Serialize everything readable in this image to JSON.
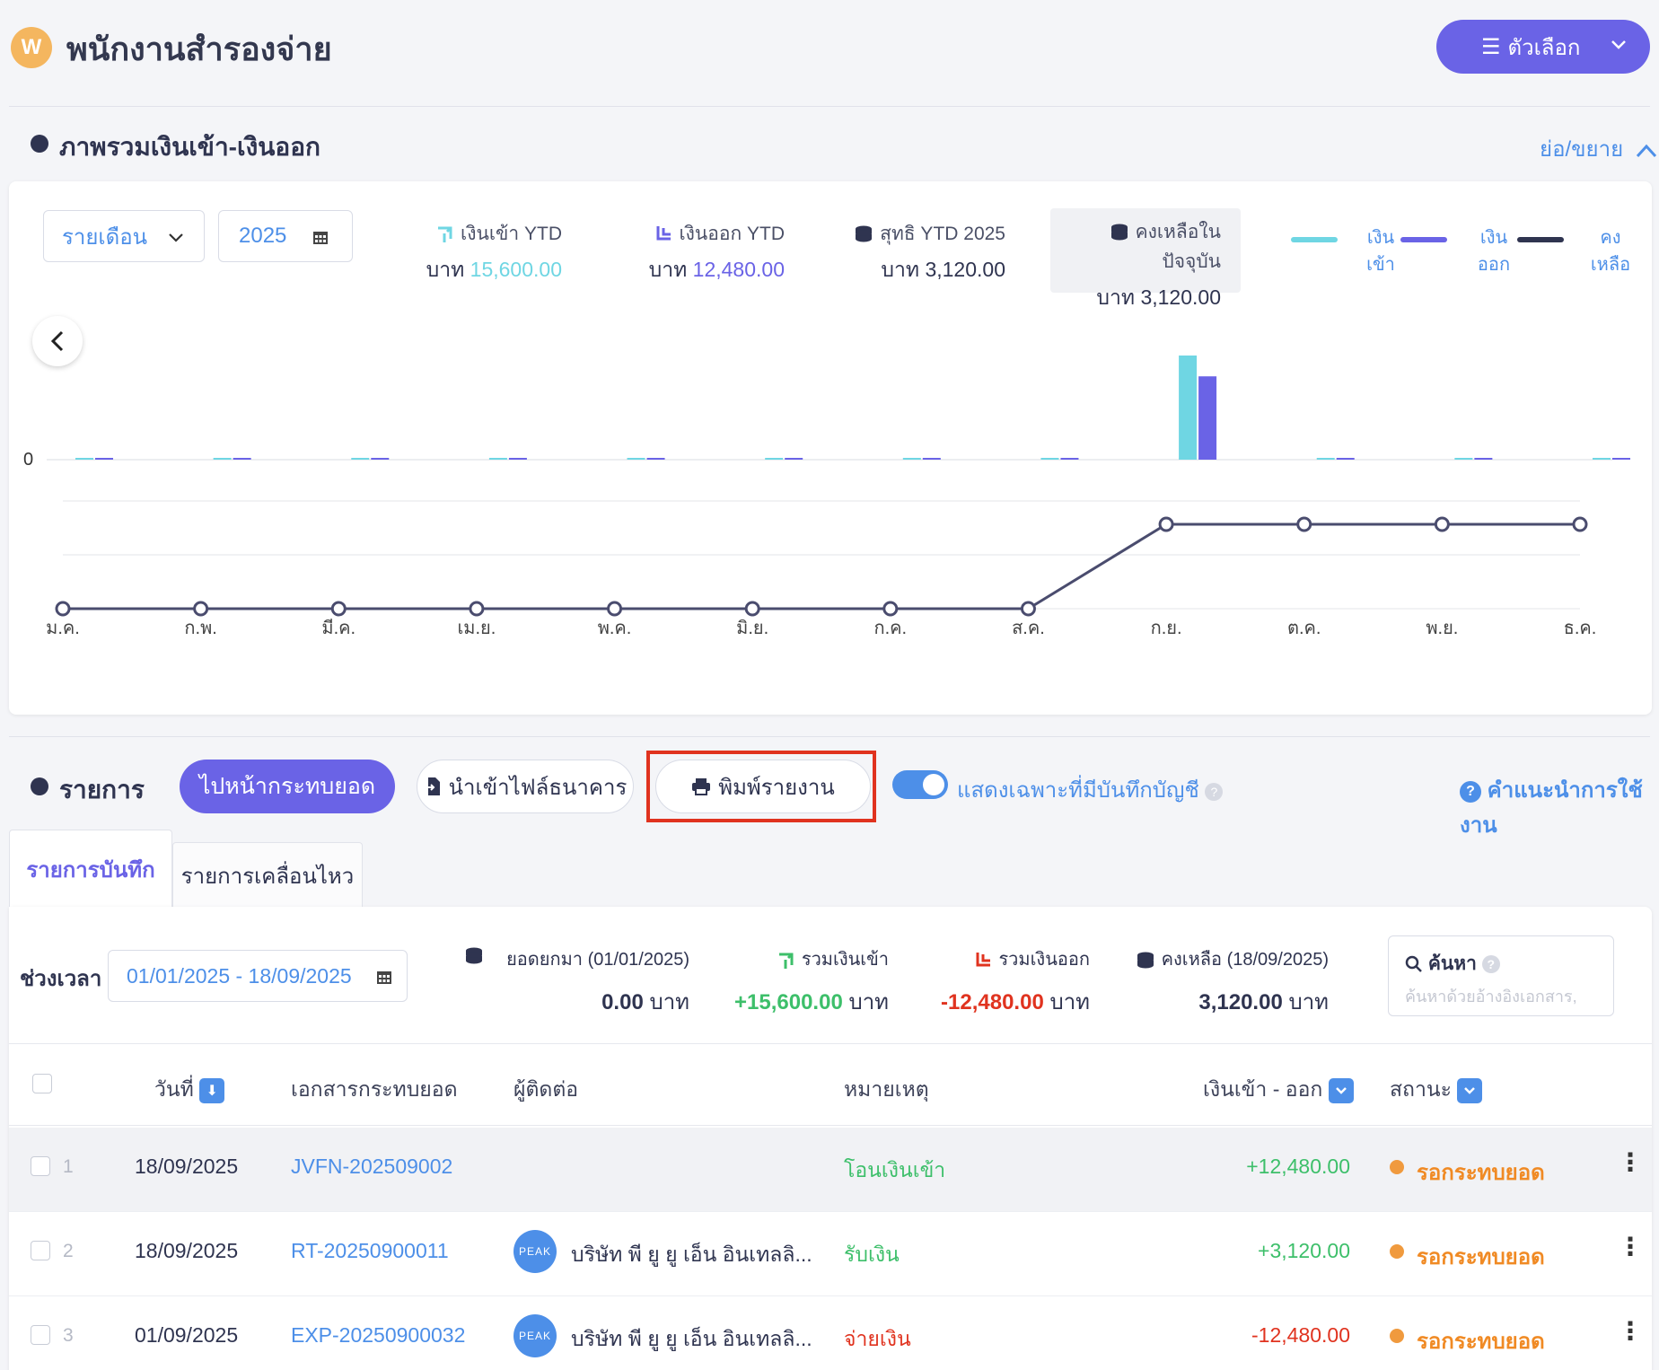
{
  "header": {
    "logo_letter": "W",
    "title": "พนักงานสำรองจ่าย",
    "options_label": "ตัวเลือก"
  },
  "overview": {
    "title": "ภาพรวมเงินเข้า-เงินออก",
    "collapse_label": "ย่อ/ขยาย",
    "period_select": "รายเดือน",
    "year_value": "2025",
    "stats": {
      "in_label": "เงินเข้า YTD",
      "in_currency": "บาท",
      "in_value": "15,600.00",
      "out_label": "เงินออก YTD",
      "out_currency": "บาท",
      "out_value": "12,480.00",
      "net_label": "สุทธิ YTD 2025",
      "net_value": "บาท 3,120.00",
      "balance_label": "คงเหลือในปัจจุบัน",
      "balance_value": "บาท 3,120.00"
    },
    "legend": {
      "in": [
        "เงิน",
        "เข้า"
      ],
      "out": [
        "เงิน",
        "ออก"
      ],
      "bal": [
        "คง",
        "เหลือ"
      ]
    }
  },
  "chart_data": {
    "type": "bar",
    "title": "ภาพรวมเงินเข้า-เงินออก",
    "categories": [
      "ม.ค.",
      "ก.พ.",
      "มี.ค.",
      "เม.ย.",
      "พ.ค.",
      "มิ.ย.",
      "ก.ค.",
      "ส.ค.",
      "ก.ย.",
      "ต.ค.",
      "พ.ย.",
      "ธ.ค."
    ],
    "zero_label": "0",
    "series": [
      {
        "name": "เงินเข้า",
        "type": "bar",
        "color": "#6fd6e3",
        "values": [
          0,
          0,
          0,
          0,
          0,
          0,
          0,
          0,
          15600,
          0,
          0,
          0
        ]
      },
      {
        "name": "เงินออก",
        "type": "bar",
        "color": "#6a63e6",
        "values": [
          0,
          0,
          0,
          0,
          0,
          0,
          0,
          0,
          12480,
          0,
          0,
          0
        ]
      },
      {
        "name": "คงเหลือ",
        "type": "line",
        "color": "#4a4c6e",
        "values": [
          0,
          0,
          0,
          0,
          0,
          0,
          0,
          0,
          3120,
          3120,
          3120,
          3120
        ]
      }
    ]
  },
  "toolbar": {
    "section_title": "รายการ",
    "goto_ledger": "ไปหน้ากระทบยอด",
    "import_bank": "นำเข้าไฟล์ธนาคาร",
    "print_report": "พิมพ์รายงาน",
    "toggle_label": "แสดงเฉพาะที่มีบันทึกบัญชี",
    "help_label": "คำแนะนำการใช้งาน"
  },
  "tabs": [
    "รายการบันทึก",
    "รายการเคลื่อนไหว"
  ],
  "summary": {
    "period_label": "ช่วงเวลา",
    "period_value": "01/01/2025 - 18/09/2025",
    "carry_label": "ยอดยกมา (01/01/2025)",
    "carry_value": "0.00",
    "in_label": "รวมเงินเข้า",
    "in_value": "+15,600.00",
    "out_label": "รวมเงินออก",
    "out_value": "-12,480.00",
    "bal_label": "คงเหลือ (18/09/2025)",
    "bal_value": "3,120.00",
    "currency": "บาท",
    "search_label": "ค้นหา",
    "search_placeholder": "ค้นหาด้วยอ้างอิงเอกสาร,"
  },
  "table": {
    "columns": {
      "date": "วันที่",
      "doc": "เอกสารกระทบยอด",
      "contact": "ผู้ติดต่อ",
      "note": "หมายเหตุ",
      "amount": "เงินเข้า - ออก",
      "status": "สถานะ"
    },
    "rows": [
      {
        "num": "1",
        "date": "18/09/2025",
        "doc": "JVFN-202509002",
        "contact": "",
        "avatar": "",
        "note": "โอนเงินเข้า",
        "amount": "+12,480.00",
        "status": "รอกระทบยอด"
      },
      {
        "num": "2",
        "date": "18/09/2025",
        "doc": "RT-20250900011",
        "contact": "บริษัท พี ยู ยู เอ็น อินเทลลิ...",
        "avatar": "PEAK",
        "note": "รับเงิน",
        "amount": "+3,120.00",
        "status": "รอกระทบยอด"
      },
      {
        "num": "3",
        "date": "01/09/2025",
        "doc": "EXP-20250900032",
        "contact": "บริษัท พี ยู ยู เอ็น อินเทลลิ...",
        "avatar": "PEAK",
        "note": "จ่ายเงิน",
        "amount": "-12,480.00",
        "status": "รอกระทบยอด"
      }
    ]
  }
}
